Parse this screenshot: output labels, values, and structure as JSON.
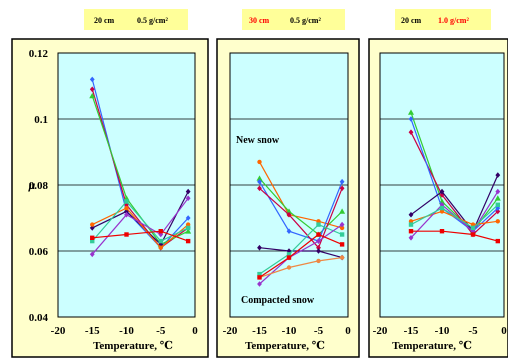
{
  "y_axis": {
    "label": "μ",
    "min": 0.04,
    "max": 0.12,
    "ticks": [
      0.04,
      0.06,
      0.08,
      0.1,
      0.12
    ],
    "tick_labels": [
      "0.04",
      "0.06",
      "0.08",
      "0.1",
      "0.12"
    ]
  },
  "x_axis": {
    "label": "Temperature, ℃",
    "min": -20,
    "max": 0,
    "ticks": [
      -20,
      -15,
      -10,
      -5,
      0
    ],
    "tick_labels": [
      "-20",
      "-15",
      "-10",
      "-5",
      "0"
    ]
  },
  "colors": {
    "plot_background": "#ccffff",
    "header_background": "#ffff99",
    "header_highlight_text": "#ff0000",
    "header_normal_text": "#000000",
    "gridline": "#000000"
  },
  "chart_data": [
    {
      "type": "line",
      "header": {
        "depth": "20 cm",
        "density": "0.5 g/cm²",
        "highlight": "none"
      },
      "annotations": [],
      "xlim": [
        -20,
        0
      ],
      "ylim": [
        0.04,
        0.12
      ],
      "grid": true,
      "series": [
        {
          "color": "#3366ff",
          "marker": "diamond",
          "points": [
            [
              -15,
              0.112
            ],
            [
              -10,
              0.072
            ],
            [
              -5,
              0.061
            ],
            [
              -1,
              0.07
            ]
          ]
        },
        {
          "color": "#cc0044",
          "marker": "diamond",
          "points": [
            [
              -15,
              0.109
            ],
            [
              -10,
              0.074
            ],
            [
              -5,
              0.061
            ],
            [
              -1,
              0.067
            ]
          ]
        },
        {
          "color": "#33cc33",
          "marker": "triangle",
          "points": [
            [
              -15,
              0.107
            ],
            [
              -10,
              0.076
            ],
            [
              -5,
              0.062
            ],
            [
              -1,
              0.066
            ]
          ]
        },
        {
          "color": "#330066",
          "marker": "diamond",
          "points": [
            [
              -15,
              0.067
            ],
            [
              -10,
              0.072
            ],
            [
              -5,
              0.062
            ],
            [
              -1,
              0.078
            ]
          ]
        },
        {
          "color": "#ff6600",
          "marker": "circle",
          "points": [
            [
              -15,
              0.068
            ],
            [
              -10,
              0.073
            ],
            [
              -5,
              0.061
            ],
            [
              -1,
              0.068
            ]
          ]
        },
        {
          "color": "#33cc99",
          "marker": "square",
          "points": [
            [
              -15,
              0.063
            ],
            [
              -10,
              0.075
            ],
            [
              -5,
              0.063
            ],
            [
              -1,
              0.067
            ]
          ]
        },
        {
          "color": "#9933cc",
          "marker": "diamond",
          "points": [
            [
              -15,
              0.059
            ],
            [
              -10,
              0.071
            ],
            [
              -5,
              0.065
            ],
            [
              -1,
              0.076
            ]
          ]
        },
        {
          "color": "#ee0000",
          "marker": "square",
          "points": [
            [
              -15,
              0.064
            ],
            [
              -10,
              0.065
            ],
            [
              -5,
              0.066
            ],
            [
              -1,
              0.063
            ]
          ]
        }
      ]
    },
    {
      "type": "line",
      "header": {
        "depth": "30 cm",
        "density": "0.5 g/cm²",
        "highlight": "depth"
      },
      "annotations": [
        "New snow",
        "Compacted snow"
      ],
      "xlim": [
        -20,
        0
      ],
      "ylim": [
        0.04,
        0.12
      ],
      "grid": true,
      "series": [
        {
          "color": "#ff6600",
          "marker": "circle",
          "points": [
            [
              -15,
              0.087
            ],
            [
              -10,
              0.071
            ],
            [
              -5,
              0.069
            ],
            [
              -1,
              0.067
            ]
          ]
        },
        {
          "color": "#33cc33",
          "marker": "triangle",
          "points": [
            [
              -15,
              0.082
            ],
            [
              -10,
              0.072
            ],
            [
              -5,
              0.065
            ],
            [
              -1,
              0.072
            ]
          ]
        },
        {
          "color": "#3366ff",
          "marker": "diamond",
          "points": [
            [
              -15,
              0.081
            ],
            [
              -10,
              0.066
            ],
            [
              -5,
              0.063
            ],
            [
              -1,
              0.081
            ]
          ]
        },
        {
          "color": "#cc0044",
          "marker": "diamond",
          "points": [
            [
              -15,
              0.079
            ],
            [
              -10,
              0.071
            ],
            [
              -5,
              0.061
            ],
            [
              -1,
              0.079
            ]
          ]
        },
        {
          "color": "#330066",
          "marker": "diamond",
          "points": [
            [
              -15,
              0.061
            ],
            [
              -10,
              0.06
            ],
            [
              -5,
              0.06
            ],
            [
              -1,
              0.058
            ]
          ]
        },
        {
          "color": "#33cc99",
          "marker": "square",
          "points": [
            [
              -15,
              0.053
            ],
            [
              -10,
              0.059
            ],
            [
              -5,
              0.068
            ],
            [
              -1,
              0.065
            ]
          ]
        },
        {
          "color": "#9933cc",
          "marker": "diamond",
          "points": [
            [
              -15,
              0.05
            ],
            [
              -10,
              0.058
            ],
            [
              -5,
              0.063
            ],
            [
              -1,
              0.068
            ]
          ]
        },
        {
          "color": "#ee8844",
          "marker": "circle",
          "points": [
            [
              -15,
              0.052
            ],
            [
              -10,
              0.055
            ],
            [
              -5,
              0.057
            ],
            [
              -1,
              0.058
            ]
          ]
        },
        {
          "color": "#ee0000",
          "marker": "square",
          "points": [
            [
              -15,
              0.052
            ],
            [
              -10,
              0.058
            ],
            [
              -5,
              0.065
            ],
            [
              -1,
              0.062
            ]
          ]
        }
      ]
    },
    {
      "type": "line",
      "header": {
        "depth": "20 cm",
        "density": "1.0 g/cm²",
        "highlight": "density"
      },
      "annotations": [],
      "xlim": [
        -20,
        0
      ],
      "ylim": [
        0.04,
        0.12
      ],
      "grid": true,
      "series": [
        {
          "color": "#33cc33",
          "marker": "triangle",
          "points": [
            [
              -15,
              0.102
            ],
            [
              -10,
              0.075
            ],
            [
              -5,
              0.066
            ],
            [
              -1,
              0.076
            ]
          ]
        },
        {
          "color": "#cc0044",
          "marker": "diamond",
          "points": [
            [
              -15,
              0.096
            ],
            [
              -10,
              0.077
            ],
            [
              -5,
              0.065
            ],
            [
              -1,
              0.072
            ]
          ]
        },
        {
          "color": "#3366ff",
          "marker": "diamond",
          "points": [
            [
              -15,
              0.1
            ],
            [
              -10,
              0.073
            ],
            [
              -5,
              0.066
            ],
            [
              -1,
              0.073
            ]
          ]
        },
        {
          "color": "#330066",
          "marker": "diamond",
          "points": [
            [
              -15,
              0.071
            ],
            [
              -10,
              0.078
            ],
            [
              -5,
              0.066
            ],
            [
              -1,
              0.083
            ]
          ]
        },
        {
          "color": "#ff6600",
          "marker": "circle",
          "points": [
            [
              -15,
              0.069
            ],
            [
              -10,
              0.072
            ],
            [
              -5,
              0.068
            ],
            [
              -1,
              0.069
            ]
          ]
        },
        {
          "color": "#9933cc",
          "marker": "diamond",
          "points": [
            [
              -15,
              0.064
            ],
            [
              -10,
              0.074
            ],
            [
              -5,
              0.066
            ],
            [
              -1,
              0.078
            ]
          ]
        },
        {
          "color": "#33cc99",
          "marker": "square",
          "points": [
            [
              -15,
              0.068
            ],
            [
              -10,
              0.073
            ],
            [
              -5,
              0.067
            ],
            [
              -1,
              0.074
            ]
          ]
        },
        {
          "color": "#ee0000",
          "marker": "square",
          "points": [
            [
              -15,
              0.066
            ],
            [
              -10,
              0.066
            ],
            [
              -5,
              0.065
            ],
            [
              -1,
              0.063
            ]
          ]
        }
      ]
    }
  ]
}
